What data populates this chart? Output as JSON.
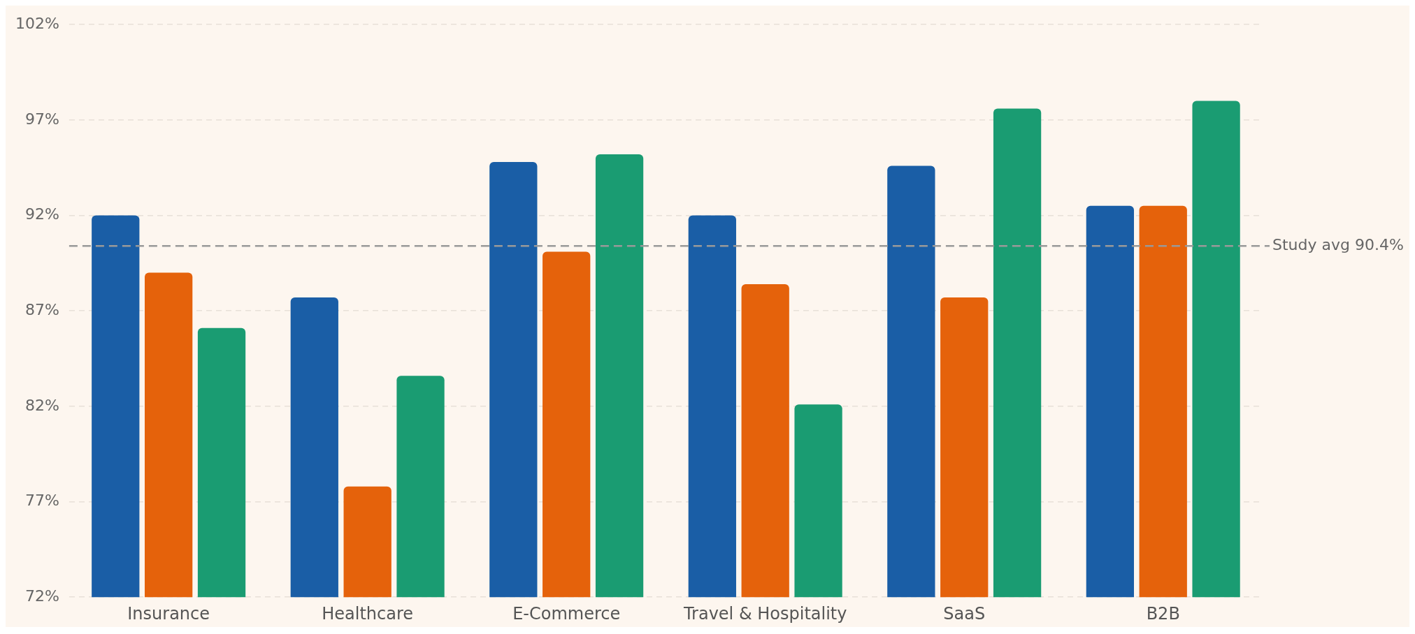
{
  "chart_data": {
    "type": "bar",
    "categories": [
      "Insurance",
      "Healthcare",
      "E-Commerce",
      "Travel & Hospitality",
      "SaaS",
      "B2B"
    ],
    "series": [
      {
        "color": "#1a5ea6",
        "values": [
          92.0,
          87.7,
          94.8,
          92.0,
          94.6,
          92.5
        ]
      },
      {
        "color": "#e5620b",
        "values": [
          89.0,
          77.8,
          90.1,
          88.4,
          87.7,
          92.5
        ]
      },
      {
        "color": "#1a9c72",
        "values": [
          86.1,
          83.6,
          95.2,
          82.1,
          97.6,
          98.0
        ]
      }
    ],
    "ylim": [
      72,
      102
    ],
    "yticks": [
      {
        "value": 72,
        "label": "72%"
      },
      {
        "value": 77,
        "label": "77%"
      },
      {
        "value": 82,
        "label": "82%"
      },
      {
        "value": 87,
        "label": "87%"
      },
      {
        "value": 92,
        "label": "92%"
      },
      {
        "value": 97,
        "label": "97%"
      },
      {
        "value": 102,
        "label": "102%"
      }
    ],
    "grid": "y",
    "legend": false,
    "ref_lines": [
      {
        "axis": "y",
        "value": 90.4,
        "label": "Study avg 90.4%",
        "color": "#999999",
        "line_style": "dashed"
      }
    ]
  }
}
